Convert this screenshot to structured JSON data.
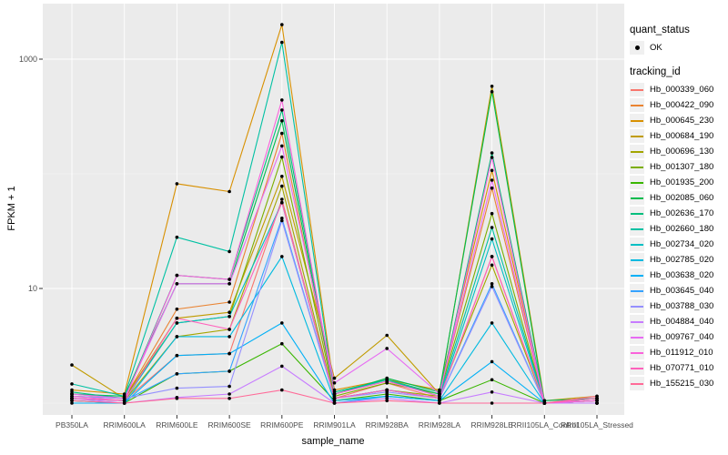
{
  "figure": {
    "colors": {
      "background": "#FFFFFF",
      "panel": "#EBEBEB",
      "grid_major": "#FFFFFF",
      "grid_minor": "#F7F7F7",
      "axis_text": "#4D4D4D",
      "tick_mark": "#333333",
      "point": "#000000",
      "legend_key_bg": "#F0F0F0"
    }
  },
  "axes": {
    "x": {
      "label": "sample_name",
      "categories": [
        "PB350LA",
        "RRIM600LA",
        "RRIM600LE",
        "RRIM600SE",
        "RRIM600PE",
        "RRIM901LA",
        "RRIM928BA",
        "RRIM928LA",
        "RRIM928LE",
        "RRII105LA_Control",
        "RRII105LA_Stressed"
      ]
    },
    "y": {
      "label": "FPKM + 1",
      "scale": "log10",
      "tick_labels": [
        "1000",
        "10"
      ],
      "tick_values": [
        1000,
        10
      ],
      "minor_values": [
        100,
        1
      ]
    }
  },
  "legend": {
    "quant_status": {
      "title": "quant_status",
      "items": [
        {
          "label": "OK",
          "marker": "point"
        }
      ]
    },
    "tracking_id": {
      "title": "tracking_id"
    }
  },
  "chart_data": {
    "type": "line",
    "title": "",
    "xlabel": "sample_name",
    "ylabel": "FPKM + 1",
    "y_scale": "log10",
    "ylim": [
      1,
      3000
    ],
    "grid": true,
    "legend_position": "right",
    "marker": "black point (quant_status = OK) on every value",
    "categories": [
      "PB350LA",
      "RRIM600LA",
      "RRIM600LE",
      "RRIM600SE",
      "RRIM600PE",
      "RRIM901LA",
      "RRIM928BA",
      "RRIM928LA",
      "RRIM928LE",
      "RRII105LA_Control",
      "RRII105LA_Stressed"
    ],
    "series": [
      {
        "name": "Hb_000339_060",
        "color": "#F8766D",
        "values": [
          1.1,
          1.05,
          2.6,
          2.7,
          60,
          1.1,
          1.5,
          1.1,
          19,
          1.0,
          1.1
        ]
      },
      {
        "name": "Hb_000422_090",
        "color": "#EA8331",
        "values": [
          1.2,
          1.1,
          6.6,
          7.6,
          225,
          1.2,
          1.55,
          1.2,
          75,
          1.0,
          1.05
        ]
      },
      {
        "name": "Hb_000645_230",
        "color": "#D89000",
        "values": [
          1.3,
          1.2,
          82,
          70,
          2000,
          1.3,
          1.6,
          1.3,
          107,
          1.05,
          1.1
        ]
      },
      {
        "name": "Hb_000684_190",
        "color": "#C09B00",
        "values": [
          2.15,
          1.1,
          5.5,
          6.2,
          95,
          1.65,
          3.9,
          1.2,
          580,
          1.05,
          1.15
        ]
      },
      {
        "name": "Hb_000696_130",
        "color": "#A3A500",
        "values": [
          1.1,
          1.05,
          3.8,
          4.4,
          78,
          1.1,
          1.3,
          1.15,
          16,
          1.0,
          1.05
        ]
      },
      {
        "name": "Hb_001307_180",
        "color": "#7CAE00",
        "values": [
          1.15,
          1.1,
          5.0,
          5.7,
          140,
          1.15,
          1.5,
          1.2,
          45,
          1.0,
          1.05
        ]
      },
      {
        "name": "Hb_001935_200",
        "color": "#39B600",
        "values": [
          1.05,
          1.0,
          1.8,
          1.9,
          3.3,
          1.05,
          1.2,
          1.05,
          1.6,
          1.0,
          1.0
        ]
      },
      {
        "name": "Hb_002085_060",
        "color": "#00BB4E",
        "values": [
          1.2,
          1.15,
          11,
          11,
          290,
          1.2,
          1.65,
          1.25,
          520,
          1.0,
          1.1
        ]
      },
      {
        "name": "Hb_002636_170",
        "color": "#00BF7D",
        "values": [
          1.25,
          1.1,
          13,
          12,
          360,
          1.25,
          1.6,
          1.2,
          152,
          1.05,
          1.1
        ]
      },
      {
        "name": "Hb_002660_180",
        "color": "#00C1A3",
        "values": [
          1.47,
          1.15,
          28,
          21,
          1400,
          1.2,
          1.6,
          1.15,
          34,
          1.0,
          1.05
        ]
      },
      {
        "name": "Hb_002734_020",
        "color": "#00BFC4",
        "values": [
          1.1,
          1.05,
          5.0,
          5.7,
          56,
          1.1,
          1.3,
          1.1,
          27,
          1.0,
          1.0
        ]
      },
      {
        "name": "Hb_002785_020",
        "color": "#00BAE0",
        "values": [
          1.05,
          1.0,
          3.8,
          3.8,
          19,
          1.05,
          1.15,
          1.05,
          5.0,
          1.0,
          1.0
        ]
      },
      {
        "name": "Hb_003638_020",
        "color": "#00B0F6",
        "values": [
          1.0,
          1.0,
          2.6,
          2.7,
          5.0,
          1.0,
          1.15,
          1.05,
          2.3,
          1.0,
          1.0
        ]
      },
      {
        "name": "Hb_003645_040",
        "color": "#35A2FF",
        "values": [
          1.1,
          1.05,
          1.8,
          1.9,
          41,
          1.1,
          1.3,
          1.1,
          11,
          1.0,
          1.0
        ]
      },
      {
        "name": "Hb_003788_030",
        "color": "#9590FF",
        "values": [
          1.15,
          1.1,
          1.35,
          1.4,
          39,
          1.1,
          1.25,
          1.1,
          10.4,
          1.0,
          1.0
        ]
      },
      {
        "name": "Hb_004884_040",
        "color": "#C77CFF",
        "values": [
          1.1,
          1.0,
          1.12,
          1.2,
          2.1,
          1.0,
          1.1,
          1.0,
          1.25,
          1.0,
          1.0
        ]
      },
      {
        "name": "Hb_009767_040",
        "color": "#E76BF3",
        "values": [
          1.2,
          1.1,
          11,
          11,
          175,
          1.5,
          3.0,
          1.2,
          88,
          1.0,
          1.05
        ]
      },
      {
        "name": "Hb_011912_010",
        "color": "#FA62DB",
        "values": [
          1.15,
          1.05,
          13,
          12,
          440,
          1.2,
          1.55,
          1.15,
          139,
          1.0,
          1.05
        ]
      },
      {
        "name": "Hb_070771_010",
        "color": "#FF62BC",
        "values": [
          1.1,
          1.05,
          5.5,
          4.4,
          56,
          1.1,
          1.3,
          1.1,
          19,
          1.0,
          1.1
        ]
      },
      {
        "name": "Hb_155215_030",
        "color": "#FF6A98",
        "values": [
          1.05,
          1.0,
          1.1,
          1.1,
          1.3,
          1.0,
          1.05,
          1.0,
          1.0,
          1.0,
          1.15
        ]
      }
    ]
  }
}
